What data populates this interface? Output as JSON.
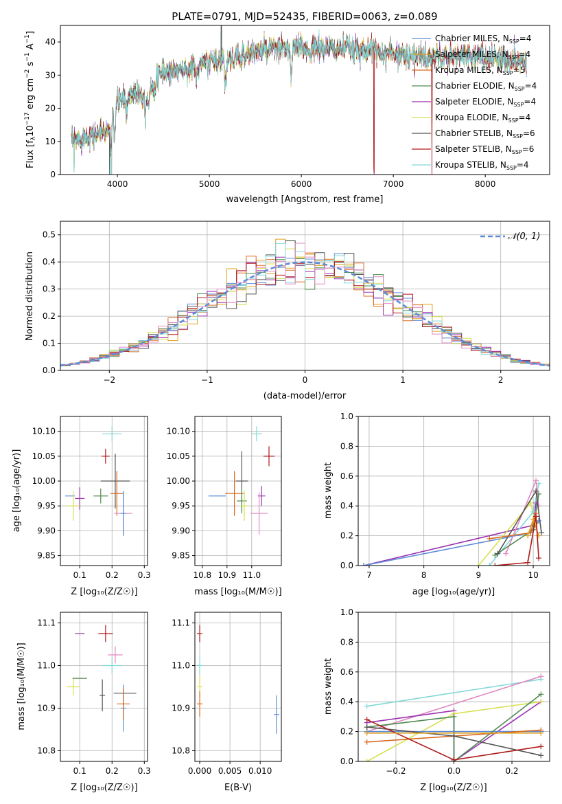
{
  "figure_title": "PLATE=0791, MJD=52435, FIBERID=0063, z=0.089",
  "colors": {
    "Chabrier MILES": "#5b8bd8",
    "Salpeter MILES": "#e0a020",
    "Kroupa MILES": "#d86a20",
    "Chabrier ELODIE": "#4f8a4f",
    "Salpeter ELODIE": "#9b30b0",
    "Kroupa ELODIE": "#d8e050",
    "Chabrier STELIB": "#555555",
    "Salpeter STELIB": "#b01818",
    "Kroupa STELIB": "#80d8d8",
    "extra_pink": "#e088c0",
    "normal_curve": "#5b8bd8"
  },
  "chart_data": [
    {
      "id": "spectrum",
      "type": "line",
      "title": "PLATE=0791, MJD=52435, FIBERID=0063, z=0.089",
      "xlabel": "wavelength [Angstrom, rest frame]",
      "ylabel_parts": [
        "Flux [f",
        "λ",
        "10",
        "−17",
        " erg cm",
        "−2",
        " s",
        "−1",
        " A",
        "−1",
        "]"
      ],
      "xlim": [
        3380,
        8700
      ],
      "ylim": [
        0,
        45
      ],
      "xticks": [
        4000,
        5000,
        6000,
        7000,
        8000
      ],
      "yticks": [
        0,
        10,
        20,
        30,
        40
      ],
      "legend_position": "top-right",
      "legend": [
        {
          "base": "Chabrier MILES, N",
          "sub": "SSP",
          "tail": "=4",
          "color": "#5b8bd8"
        },
        {
          "base": "Salpeter MILES, N",
          "sub": "SSP",
          "tail": "=4",
          "color": "#e0a020"
        },
        {
          "base": "Kroupa MILES, N",
          "sub": "SSP",
          "tail": "=5",
          "color": "#d86a20"
        },
        {
          "base": "Chabrier ELODIE, N",
          "sub": "SSP",
          "tail": "=4",
          "color": "#4f8a4f"
        },
        {
          "base": "Salpeter ELODIE, N",
          "sub": "SSP",
          "tail": "=4",
          "color": "#9b30b0"
        },
        {
          "base": "Kroupa ELODIE, N",
          "sub": "SSP",
          "tail": "=4",
          "color": "#d8e050"
        },
        {
          "base": "Chabrier STELIB, N",
          "sub": "SSP",
          "tail": "=6",
          "color": "#555555"
        },
        {
          "base": "Salpeter STELIB, N",
          "sub": "SSP",
          "tail": "=6",
          "color": "#b01818"
        },
        {
          "base": "Kroupa STELIB, N",
          "sub": "SSP",
          "tail": "=4",
          "color": "#80d8d8"
        }
      ],
      "continuum_knots": [
        [
          3500,
          10
        ],
        [
          3700,
          12
        ],
        [
          3900,
          13
        ],
        [
          3950,
          19
        ],
        [
          4000,
          22
        ],
        [
          4200,
          25
        ],
        [
          4300,
          24
        ],
        [
          4500,
          31
        ],
        [
          4800,
          32
        ],
        [
          5000,
          34
        ],
        [
          5200,
          35
        ],
        [
          5500,
          37
        ],
        [
          5800,
          38
        ],
        [
          6000,
          38
        ],
        [
          6300,
          38
        ],
        [
          6600,
          38
        ],
        [
          6900,
          37
        ],
        [
          7200,
          36
        ],
        [
          7400,
          35
        ],
        [
          7800,
          36
        ],
        [
          8200,
          35
        ],
        [
          8450,
          34
        ]
      ],
      "absorption_lines": [
        [
          3934,
          9
        ],
        [
          3969,
          8
        ],
        [
          4101,
          5
        ],
        [
          4304,
          5
        ],
        [
          4340,
          4
        ],
        [
          4861,
          4
        ],
        [
          5175,
          7
        ],
        [
          5270,
          3
        ],
        [
          5890,
          8
        ],
        [
          6563,
          2
        ],
        [
          7600,
          3
        ]
      ],
      "spikes": [
        [
          3530,
          -10
        ],
        [
          3915,
          -18
        ],
        [
          3935,
          -18
        ],
        [
          5130,
          12
        ],
        [
          6790,
          -38
        ],
        [
          7420,
          -35
        ]
      ]
    },
    {
      "id": "residuals",
      "type": "histogram",
      "xlabel": "(data-model)/error",
      "ylabel": "Normed distribution",
      "xlim": [
        -2.5,
        2.5
      ],
      "ylim": [
        0,
        0.55
      ],
      "xticks": [
        -2,
        -1,
        0,
        1,
        2
      ],
      "yticks": [
        0.0,
        0.1,
        0.2,
        0.3,
        0.4,
        0.5
      ],
      "grid": true,
      "legend_position": "top-right",
      "normal_label": "𝒩(0, 1)",
      "bin_width": 0.1,
      "bin_start": -2.5
    },
    {
      "id": "age_vs_Z",
      "type": "scatter",
      "xlabel": "Z [log₁₀(Z/Z☉)]",
      "ylabel": "age  [log₁₀(age/yr)]",
      "xlim": [
        0.04,
        0.31
      ],
      "ylim": [
        9.83,
        10.13
      ],
      "xticks": [
        0.1,
        0.2,
        0.3
      ],
      "yticks": [
        9.85,
        9.9,
        9.95,
        10.0,
        10.05,
        10.1
      ],
      "grid": true,
      "points": [
        {
          "x": 0.07,
          "y": 9.97,
          "dx": 0.03,
          "dy": 0.0,
          "color": "#5b8bd8"
        },
        {
          "x": 0.1,
          "y": 9.965,
          "dx": 0.03,
          "dy": 0.045,
          "color": "#9b30b0"
        },
        {
          "x": 0.08,
          "y": 9.95,
          "dx": 0.04,
          "dy": 0.06,
          "color": "#d8e050"
        },
        {
          "x": 0.165,
          "y": 9.97,
          "dx": 0.045,
          "dy": 0.03,
          "color": "#4f8a4f"
        },
        {
          "x": 0.18,
          "y": 10.05,
          "dx": 0.025,
          "dy": 0.03,
          "color": "#b01818"
        },
        {
          "x": 0.2,
          "y": 10.095,
          "dx": 0.06,
          "dy": 0.03,
          "color": "#80d8d8"
        },
        {
          "x": 0.21,
          "y": 10.0,
          "dx": 0.09,
          "dy": 0.11,
          "color": "#555555"
        },
        {
          "x": 0.215,
          "y": 9.975,
          "dx": 0.04,
          "dy": 0.09,
          "color": "#d86a20"
        },
        {
          "x": 0.235,
          "y": 9.935,
          "dx": 0.055,
          "dy": 0.09,
          "color": "#e088c0"
        },
        {
          "x": 0.235,
          "y": 9.935,
          "dx": 0.0,
          "dy": 0.09,
          "color": "#5b8bd8"
        }
      ]
    },
    {
      "id": "age_vs_mass",
      "type": "scatter",
      "xlabel": "mass [log₁₀(M/M☉)]",
      "ylabel": "",
      "xlim": [
        10.77,
        11.12
      ],
      "ylim": [
        9.83,
        10.13
      ],
      "xticks": [
        10.8,
        10.9,
        11.0
      ],
      "yticks": [
        9.85,
        9.9,
        9.95,
        10.0,
        10.05,
        10.1
      ],
      "grid": true,
      "points": [
        {
          "x": 10.86,
          "y": 9.97,
          "dx": 0.07,
          "dy": 0.0,
          "color": "#5b8bd8"
        },
        {
          "x": 10.93,
          "y": 9.975,
          "dx": 0.075,
          "dy": 0.09,
          "color": "#d86a20"
        },
        {
          "x": 10.96,
          "y": 10.0,
          "dx": 0.05,
          "dy": 0.12,
          "color": "#555555"
        },
        {
          "x": 10.96,
          "y": 9.96,
          "dx": 0.04,
          "dy": 0.05,
          "color": "#4f8a4f"
        },
        {
          "x": 10.97,
          "y": 9.95,
          "dx": 0.03,
          "dy": 0.06,
          "color": "#d8e050"
        },
        {
          "x": 11.02,
          "y": 10.095,
          "dx": 0.045,
          "dy": 0.03,
          "color": "#80d8d8"
        },
        {
          "x": 11.07,
          "y": 10.05,
          "dx": 0.045,
          "dy": 0.04,
          "color": "#b01818"
        },
        {
          "x": 11.04,
          "y": 9.97,
          "dx": 0.03,
          "dy": 0.04,
          "color": "#9b30b0"
        },
        {
          "x": 11.03,
          "y": 9.935,
          "dx": 0.07,
          "dy": 0.085,
          "color": "#e088c0"
        }
      ]
    },
    {
      "id": "massweight_vs_age",
      "type": "line",
      "xlabel": "age  [log₁₀(age/yr)]",
      "ylabel": "mass weight",
      "xlim": [
        6.8,
        10.3
      ],
      "ylim": [
        0,
        1
      ],
      "xticks": [
        7,
        8,
        9,
        10
      ],
      "yticks": [
        0.0,
        0.2,
        0.4,
        0.6,
        0.8,
        1.0
      ],
      "grid": true,
      "series": [
        {
          "color": "#9b30b0",
          "pts": [
            [
              6.9,
              0.0
            ],
            [
              10.0,
              0.27
            ],
            [
              10.05,
              0.42
            ]
          ]
        },
        {
          "color": "#5b8bd8",
          "pts": [
            [
              6.9,
              0.0
            ],
            [
              9.95,
              0.22
            ],
            [
              10.1,
              0.3
            ]
          ]
        },
        {
          "color": "#d8e050",
          "pts": [
            [
              9.0,
              0.0
            ],
            [
              9.95,
              0.42
            ],
            [
              10.05,
              0.28
            ]
          ]
        },
        {
          "color": "#80d8d8",
          "pts": [
            [
              9.2,
              0.0
            ],
            [
              10.0,
              0.36
            ],
            [
              10.1,
              0.55
            ]
          ]
        },
        {
          "color": "#e088c0",
          "pts": [
            [
              9.5,
              0.08
            ],
            [
              10.05,
              0.57
            ],
            [
              10.1,
              0.4
            ]
          ]
        },
        {
          "color": "#4f8a4f",
          "pts": [
            [
              9.3,
              0.07
            ],
            [
              10.0,
              0.24
            ],
            [
              10.1,
              0.48
            ]
          ]
        },
        {
          "color": "#555555",
          "pts": [
            [
              9.35,
              0.08
            ],
            [
              10.05,
              0.5
            ],
            [
              10.15,
              0.22
            ]
          ]
        },
        {
          "color": "#d86a20",
          "pts": [
            [
              9.2,
              0.18
            ],
            [
              9.95,
              0.22
            ],
            [
              10.05,
              0.35
            ]
          ]
        },
        {
          "color": "#e0a020",
          "pts": [
            [
              9.9,
              0.2
            ],
            [
              10.0,
              0.31
            ],
            [
              10.1,
              0.2
            ]
          ]
        },
        {
          "color": "#b01818",
          "pts": [
            [
              9.3,
              0.0
            ],
            [
              9.9,
              0.02
            ],
            [
              10.05,
              0.33
            ],
            [
              10.1,
              0.05
            ]
          ]
        }
      ]
    },
    {
      "id": "mass_vs_Z",
      "type": "scatter",
      "xlabel": "Z [log₁₀(Z/Z☉)]",
      "ylabel": "mass [log₁₀(M/M☉)]",
      "xlim": [
        0.04,
        0.31
      ],
      "ylim": [
        10.775,
        11.125
      ],
      "xticks": [
        0.1,
        0.2,
        0.3
      ],
      "yticks": [
        10.8,
        10.9,
        11.0,
        11.1
      ],
      "grid": true,
      "points": [
        {
          "x": 0.1,
          "y": 11.075,
          "dx": 0.03,
          "dy": 0.0,
          "color": "#9b30b0"
        },
        {
          "x": 0.18,
          "y": 11.075,
          "dx": 0.045,
          "dy": 0.04,
          "color": "#b01818"
        },
        {
          "x": 0.08,
          "y": 10.95,
          "dx": 0.04,
          "dy": 0.04,
          "color": "#d8e050"
        },
        {
          "x": 0.1,
          "y": 10.97,
          "dx": 0.045,
          "dy": 0.0,
          "color": "#4f8a4f"
        },
        {
          "x": 0.2,
          "y": 11.0,
          "dx": 0.06,
          "dy": 0.04,
          "color": "#80d8d8"
        },
        {
          "x": 0.21,
          "y": 11.025,
          "dx": 0.045,
          "dy": 0.04,
          "color": "#e088c0"
        },
        {
          "x": 0.17,
          "y": 10.93,
          "dx": 0.0,
          "dy": 0.075,
          "color": "#555555"
        },
        {
          "x": 0.24,
          "y": 10.935,
          "dx": 0.07,
          "dy": 0.0,
          "color": "#555555"
        },
        {
          "x": 0.235,
          "y": 10.9,
          "dx": 0.0,
          "dy": 0.11,
          "color": "#5b8bd8"
        },
        {
          "x": 0.235,
          "y": 10.91,
          "dx": 0.04,
          "dy": 0.075,
          "color": "#d86a20"
        }
      ]
    },
    {
      "id": "mass_vs_EBV",
      "type": "scatter",
      "xlabel": "E(B-V)",
      "ylabel": "",
      "xlim": [
        -0.0008,
        0.0135
      ],
      "ylim": [
        10.775,
        11.125
      ],
      "xticks": [
        0.0,
        0.005,
        0.01
      ],
      "xtick_labels": [
        "0.000",
        "0.005",
        "0.010"
      ],
      "yticks": [
        10.8,
        10.9,
        11.0,
        11.1
      ],
      "grid": true,
      "points": [
        {
          "x": 0.0,
          "y": 11.075,
          "dx": 0.0,
          "dy": 0.04,
          "color": "#b01818"
        },
        {
          "x": 0.0,
          "y": 11.0,
          "dx": 0.0,
          "dy": 0.04,
          "color": "#80d8d8"
        },
        {
          "x": 0.0,
          "y": 10.95,
          "dx": 0.0,
          "dy": 0.05,
          "color": "#d8e050"
        },
        {
          "x": 0.0,
          "y": 10.91,
          "dx": 0.0,
          "dy": 0.06,
          "color": "#d86a20"
        },
        {
          "x": 0.0127,
          "y": 10.885,
          "dx": 0.0,
          "dy": 0.09,
          "color": "#5b8bd8"
        }
      ]
    },
    {
      "id": "massweight_vs_Z",
      "type": "line",
      "xlabel": "Z [log₁₀(Z/Z☉)]",
      "ylabel": "mass weight",
      "xlim": [
        -0.33,
        0.33
      ],
      "ylim": [
        0,
        1
      ],
      "xticks": [
        -0.2,
        0.0,
        0.2
      ],
      "yticks": [
        0.0,
        0.2,
        0.4,
        0.6,
        0.8,
        1.0
      ],
      "grid": true,
      "series": [
        {
          "color": "#80d8d8",
          "pts": [
            [
              -0.3,
              0.37
            ],
            [
              0.3,
              0.55
            ]
          ]
        },
        {
          "color": "#e088c0",
          "pts": [
            [
              -0.3,
              0.2
            ],
            [
              0.3,
              0.57
            ]
          ]
        },
        {
          "color": "#9b30b0",
          "pts": [
            [
              -0.3,
              0.26
            ],
            [
              0.0,
              0.34
            ],
            [
              0.0,
              0.0
            ],
            [
              0.3,
              0.4
            ]
          ]
        },
        {
          "color": "#d8e050",
          "pts": [
            [
              -0.3,
              0.0
            ],
            [
              0.0,
              0.32
            ],
            [
              0.3,
              0.4
            ]
          ]
        },
        {
          "color": "#5b8bd8",
          "pts": [
            [
              -0.3,
              0.2
            ],
            [
              0.3,
              0.2
            ]
          ]
        },
        {
          "color": "#d86a20",
          "pts": [
            [
              -0.3,
              0.13
            ],
            [
              0.3,
              0.21
            ]
          ]
        },
        {
          "color": "#4f8a4f",
          "pts": [
            [
              -0.3,
              0.23
            ],
            [
              0.0,
              0.3
            ],
            [
              0.0,
              0.0
            ],
            [
              0.3,
              0.45
            ]
          ]
        },
        {
          "color": "#555555",
          "pts": [
            [
              -0.3,
              0.23
            ],
            [
              0.0,
              0.17
            ],
            [
              0.3,
              0.04
            ]
          ]
        },
        {
          "color": "#b01818",
          "pts": [
            [
              -0.3,
              0.28
            ],
            [
              0.0,
              0.01
            ],
            [
              0.3,
              0.1
            ]
          ]
        },
        {
          "color": "#e0a020",
          "pts": [
            [
              -0.3,
              0.19
            ],
            [
              0.3,
              0.19
            ]
          ]
        }
      ]
    }
  ]
}
